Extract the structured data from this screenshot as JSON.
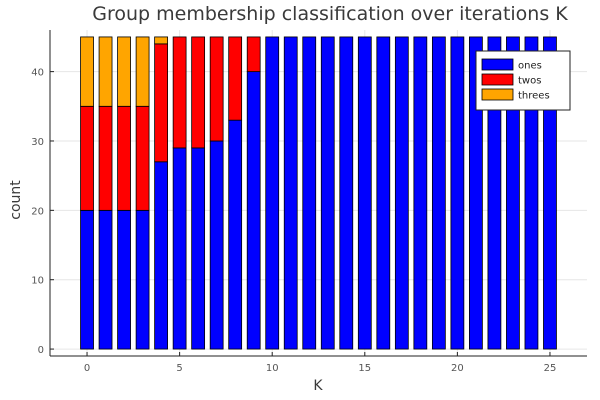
{
  "chart_data": {
    "type": "bar",
    "stacked": true,
    "title": "Group membership classification over iterations K",
    "xlabel": "K",
    "ylabel": "count",
    "x": [
      0,
      1,
      2,
      3,
      4,
      5,
      6,
      7,
      8,
      9,
      10,
      11,
      12,
      13,
      14,
      15,
      16,
      17,
      18,
      19,
      20,
      21,
      22,
      23,
      24,
      25
    ],
    "xlim": [
      -2,
      27
    ],
    "ylim": [
      -1,
      46
    ],
    "xticks": [
      0,
      5,
      10,
      15,
      20,
      25
    ],
    "yticks": [
      0,
      10,
      20,
      30,
      40
    ],
    "grid": true,
    "legend_position": "top-right",
    "series": [
      {
        "name": "ones",
        "color": "#0000ff",
        "values": [
          20,
          20,
          20,
          20,
          27,
          29,
          29,
          30,
          33,
          40,
          45,
          45,
          45,
          45,
          45,
          45,
          45,
          45,
          45,
          45,
          45,
          45,
          45,
          45,
          45,
          45
        ]
      },
      {
        "name": "twos",
        "color": "#ff0000",
        "values": [
          15,
          15,
          15,
          15,
          17,
          16,
          16,
          15,
          12,
          5,
          0,
          0,
          0,
          0,
          0,
          0,
          0,
          0,
          0,
          0,
          0,
          0,
          0,
          0,
          0,
          0
        ]
      },
      {
        "name": "threes",
        "color": "#ffa500",
        "values": [
          10,
          10,
          10,
          10,
          1,
          0,
          0,
          0,
          0,
          0,
          0,
          0,
          0,
          0,
          0,
          0,
          0,
          0,
          0,
          0,
          0,
          0,
          0,
          0,
          0,
          0
        ]
      }
    ]
  }
}
